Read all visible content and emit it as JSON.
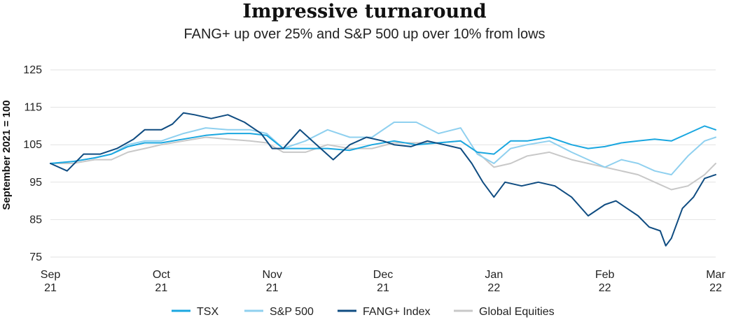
{
  "chart_data": {
    "type": "line",
    "title": "Impressive turnaround",
    "subtitle": "FANG+ up over 25% and S&P 500 up over 10% from lows",
    "ylabel": "September 2021 = 100",
    "ylim": [
      75,
      125
    ],
    "yticks": [
      125,
      115,
      105,
      95,
      85,
      75
    ],
    "xlim": [
      0,
      6
    ],
    "xticks": [
      {
        "x": 0,
        "line1": "Sep",
        "line2": "21"
      },
      {
        "x": 1,
        "line1": "Oct",
        "line2": "21"
      },
      {
        "x": 2,
        "line1": "Nov",
        "line2": "21"
      },
      {
        "x": 3,
        "line1": "Dec",
        "line2": "21"
      },
      {
        "x": 4,
        "line1": "Jan",
        "line2": "22"
      },
      {
        "x": 5,
        "line1": "Feb",
        "line2": "22"
      },
      {
        "x": 6,
        "line1": "Mar",
        "line2": "22"
      }
    ],
    "grid": true,
    "legend_position": "bottom",
    "series": [
      {
        "name": "TSX",
        "color": "#1aa7e0",
        "x": [
          0,
          0.2,
          0.4,
          0.55,
          0.7,
          0.85,
          1.0,
          1.2,
          1.4,
          1.6,
          1.8,
          1.95,
          2.1,
          2.3,
          2.5,
          2.7,
          2.9,
          3.1,
          3.3,
          3.5,
          3.7,
          3.85,
          4.0,
          4.15,
          4.3,
          4.5,
          4.7,
          4.85,
          5.0,
          5.15,
          5.3,
          5.45,
          5.6,
          5.75,
          5.9,
          6.0
        ],
        "y": [
          100,
          100.5,
          101.5,
          102.5,
          104.5,
          105.5,
          105.5,
          106.5,
          107.5,
          108,
          108,
          107.5,
          104,
          104,
          104,
          103.5,
          105,
          106,
          105,
          105.5,
          106,
          103,
          102.5,
          106,
          106,
          107,
          105,
          104,
          104.5,
          105.5,
          106,
          106.5,
          106,
          108,
          110,
          109
        ]
      },
      {
        "name": "S&P 500",
        "color": "#8fd0ef",
        "x": [
          0,
          0.2,
          0.4,
          0.55,
          0.7,
          0.85,
          1.0,
          1.2,
          1.4,
          1.6,
          1.8,
          1.95,
          2.1,
          2.3,
          2.5,
          2.7,
          2.9,
          3.1,
          3.3,
          3.5,
          3.7,
          3.85,
          4.0,
          4.15,
          4.3,
          4.5,
          4.7,
          4.85,
          5.0,
          5.15,
          5.3,
          5.45,
          5.6,
          5.75,
          5.9,
          6.0
        ],
        "y": [
          100,
          100.5,
          101.5,
          102.5,
          105,
          106,
          106,
          108,
          109.5,
          109,
          109,
          108,
          104,
          106,
          109,
          107,
          107,
          111,
          111,
          108,
          109.5,
          102.5,
          100,
          104,
          105,
          106,
          103,
          101,
          99,
          101,
          100,
          98,
          97,
          102,
          106,
          107
        ]
      },
      {
        "name": "FANG+ Index",
        "color": "#0f4c81",
        "x": [
          0,
          0.15,
          0.3,
          0.45,
          0.6,
          0.75,
          0.85,
          1.0,
          1.1,
          1.2,
          1.3,
          1.45,
          1.6,
          1.75,
          1.9,
          2.0,
          2.1,
          2.25,
          2.4,
          2.55,
          2.7,
          2.85,
          3.0,
          3.1,
          3.25,
          3.4,
          3.55,
          3.7,
          3.8,
          3.9,
          4.0,
          4.1,
          4.25,
          4.4,
          4.55,
          4.7,
          4.85,
          5.0,
          5.1,
          5.2,
          5.3,
          5.4,
          5.5,
          5.55,
          5.6,
          5.7,
          5.8,
          5.9,
          6.0
        ],
        "y": [
          100,
          98,
          102.5,
          102.5,
          104,
          106.5,
          109,
          109,
          110.5,
          113.5,
          113,
          112,
          113,
          111,
          108,
          104,
          104,
          109,
          105,
          101,
          105,
          107,
          106,
          105,
          104.5,
          106,
          105,
          104,
          100,
          95,
          91,
          95,
          94,
          95,
          94,
          91,
          86,
          89,
          90,
          88,
          86,
          83,
          82,
          78,
          80,
          88,
          91,
          96,
          97
        ]
      },
      {
        "name": "Global Equities",
        "color": "#c8c8c8",
        "x": [
          0,
          0.2,
          0.4,
          0.55,
          0.7,
          0.85,
          1.0,
          1.2,
          1.4,
          1.6,
          1.8,
          1.95,
          2.1,
          2.3,
          2.5,
          2.7,
          2.9,
          3.1,
          3.3,
          3.5,
          3.7,
          3.85,
          4.0,
          4.15,
          4.3,
          4.5,
          4.7,
          4.85,
          5.0,
          5.15,
          5.3,
          5.45,
          5.6,
          5.75,
          5.9,
          6.0
        ],
        "y": [
          100,
          100,
          101,
          101,
          103,
          104,
          105,
          106,
          107,
          106.5,
          106,
          105.5,
          103,
          103,
          105,
          104,
          104,
          105.5,
          105.5,
          105.5,
          106,
          103,
          99,
          100,
          102,
          103,
          101,
          100,
          99,
          98,
          97,
          95,
          93,
          94,
          97,
          100
        ]
      }
    ]
  }
}
